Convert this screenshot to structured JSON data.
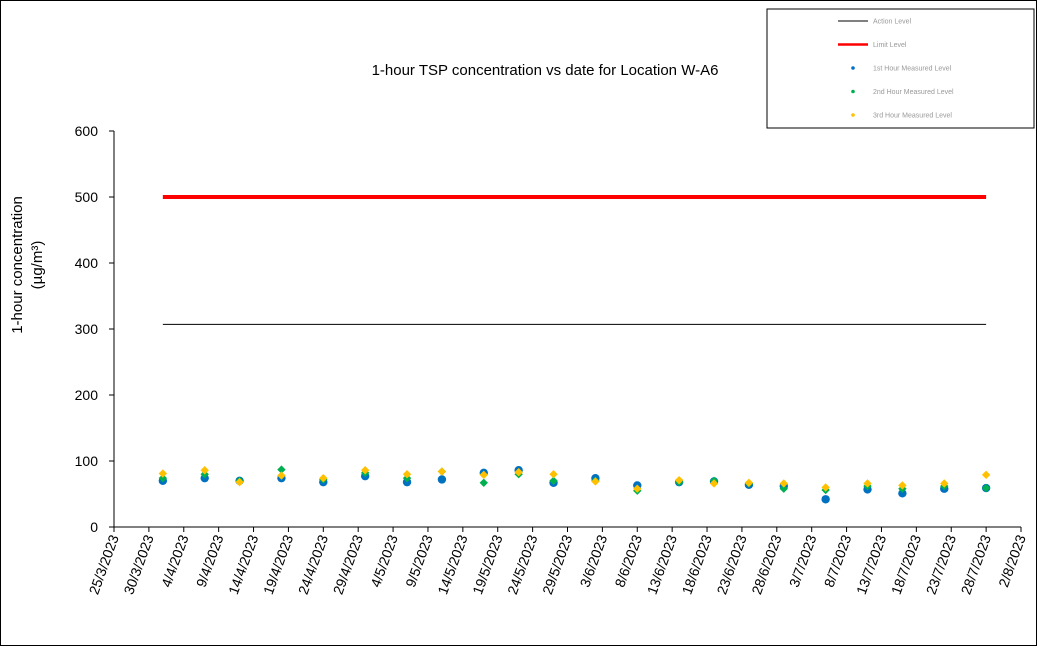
{
  "chart_data": {
    "type": "scatter",
    "title": "1-hour TSP concentration vs date for Location  W-A6",
    "ylabel_line1": "1-hour concentration",
    "ylabel_line2": "(µg/m³)",
    "xlabel": "",
    "ylim": [
      0,
      600
    ],
    "y_ticks": [
      "0",
      "100",
      "200",
      "300",
      "400",
      "500",
      "600"
    ],
    "x_range": [
      "2023-03-25",
      "2023-08-02"
    ],
    "x_ticks": [
      "25/3/2023",
      "30/3/2023",
      "4/4/2023",
      "9/4/2023",
      "14/4/2023",
      "19/4/2023",
      "24/4/2023",
      "29/4/2023",
      "4/5/2023",
      "9/5/2023",
      "14/5/2023",
      "19/5/2023",
      "24/5/2023",
      "29/5/2023",
      "3/6/2023",
      "8/6/2023",
      "13/6/2023",
      "18/6/2023",
      "23/6/2023",
      "28/6/2023",
      "3/7/2023",
      "8/7/2023",
      "13/7/2023",
      "18/7/2023",
      "23/7/2023",
      "28/7/2023",
      "2/8/2023"
    ],
    "grid": false,
    "legend_position": "top-right",
    "series": [
      {
        "name": "Action Level",
        "kind": "line",
        "color": "#000000",
        "x": [
          "2023-04-01",
          "2023-07-28"
        ],
        "y": [
          307,
          307
        ]
      },
      {
        "name": "Limit Level",
        "kind": "line",
        "color": "#ff0000",
        "x": [
          "2023-04-01",
          "2023-07-28"
        ],
        "y": [
          500,
          500
        ]
      },
      {
        "name": "1st Hour Measured Level",
        "kind": "points",
        "marker": "circle",
        "color": "#0070c0",
        "x": [
          "2023-04-01",
          "2023-04-07",
          "2023-04-12",
          "2023-04-18",
          "2023-04-24",
          "2023-04-30",
          "2023-05-06",
          "2023-05-11",
          "2023-05-17",
          "2023-05-22",
          "2023-05-27",
          "2023-06-02",
          "2023-06-08",
          "2023-06-14",
          "2023-06-19",
          "2023-06-24",
          "2023-06-29",
          "2023-07-05",
          "2023-07-11",
          "2023-07-16",
          "2023-07-22",
          "2023-07-28"
        ],
        "y": [
          70,
          74,
          70,
          74,
          68,
          77,
          68,
          72,
          82,
          86,
          67,
          74,
          63,
          68,
          69,
          64,
          62,
          42,
          57,
          51,
          58,
          59
        ]
      },
      {
        "name": "2nd Hour Measured Level",
        "kind": "points",
        "marker": "diamond",
        "color": "#00b050",
        "x": [
          "2023-04-01",
          "2023-04-07",
          "2023-04-12",
          "2023-04-18",
          "2023-04-24",
          "2023-04-30",
          "2023-05-06",
          "2023-05-11",
          "2023-05-17",
          "2023-05-22",
          "2023-05-27",
          "2023-06-02",
          "2023-06-08",
          "2023-06-14",
          "2023-06-19",
          "2023-06-24",
          "2023-06-29",
          "2023-07-05",
          "2023-07-11",
          "2023-07-16",
          "2023-07-22",
          "2023-07-28"
        ],
        "y": [
          74,
          80,
          70,
          87,
          72,
          82,
          74,
          84,
          67,
          80,
          70,
          70,
          55,
          68,
          70,
          66,
          58,
          56,
          62,
          58,
          62,
          59
        ]
      },
      {
        "name": "3rd Hour Measured Level",
        "kind": "points",
        "marker": "diamond",
        "color": "#ffc000",
        "x": [
          "2023-04-01",
          "2023-04-07",
          "2023-04-12",
          "2023-04-18",
          "2023-04-24",
          "2023-04-30",
          "2023-05-06",
          "2023-05-11",
          "2023-05-17",
          "2023-05-22",
          "2023-05-27",
          "2023-06-02",
          "2023-06-08",
          "2023-06-14",
          "2023-06-19",
          "2023-06-24",
          "2023-06-29",
          "2023-07-05",
          "2023-07-11",
          "2023-07-16",
          "2023-07-22",
          "2023-07-28"
        ],
        "y": [
          81,
          86,
          68,
          78,
          74,
          86,
          80,
          84,
          79,
          83,
          80,
          69,
          58,
          71,
          66,
          67,
          66,
          60,
          66,
          63,
          66,
          79
        ]
      }
    ]
  }
}
